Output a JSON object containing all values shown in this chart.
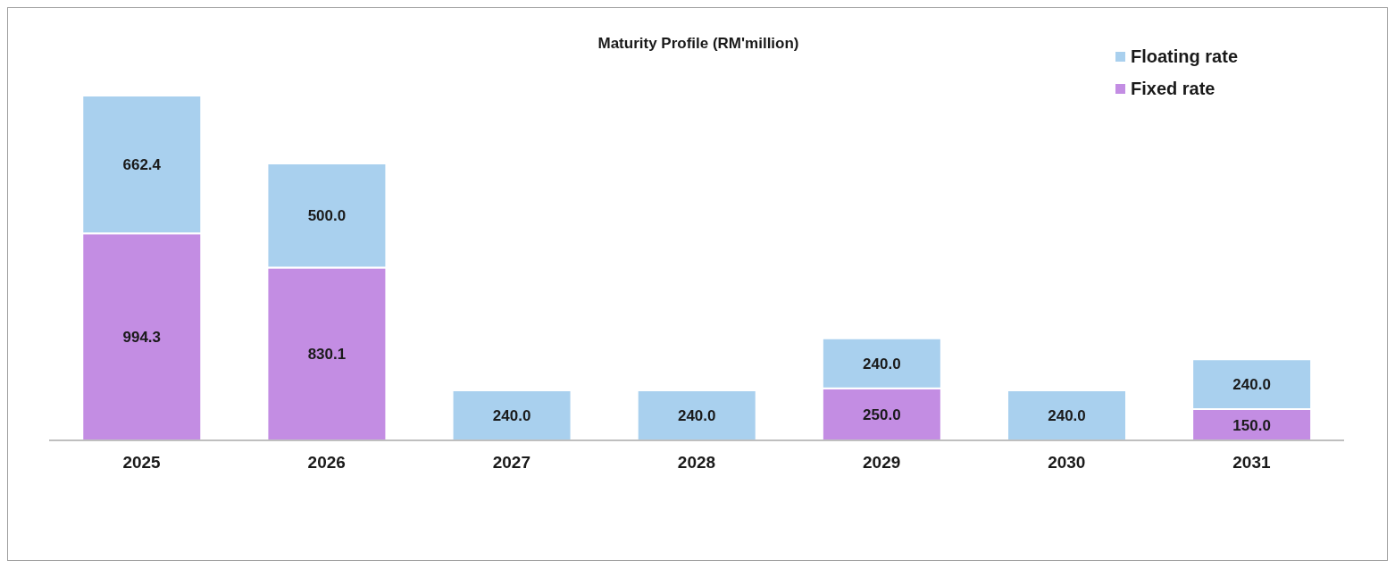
{
  "chart_data": {
    "type": "bar",
    "title": "Maturity Profile (RM'million)",
    "categories": [
      "2025",
      "2026",
      "2027",
      "2028",
      "2029",
      "2030",
      "2031"
    ],
    "stacked": true,
    "legend": "top right",
    "series": [
      {
        "name": "Fixed rate",
        "color": "#c38de3",
        "values": [
          994.3,
          830.1,
          0,
          0,
          250.0,
          0,
          150.0
        ],
        "value_labels": [
          "994.3",
          "830.1",
          null,
          null,
          "250.0",
          null,
          "150.0"
        ]
      },
      {
        "name": "Floating rate",
        "color": "#a9d0ee",
        "values": [
          662.4,
          500.0,
          240.0,
          240.0,
          240.0,
          240.0,
          240.0
        ],
        "value_labels": [
          "662.4",
          "500.0",
          "240.0",
          "240.0",
          "240.0",
          "240.0",
          "240.0"
        ]
      }
    ]
  }
}
